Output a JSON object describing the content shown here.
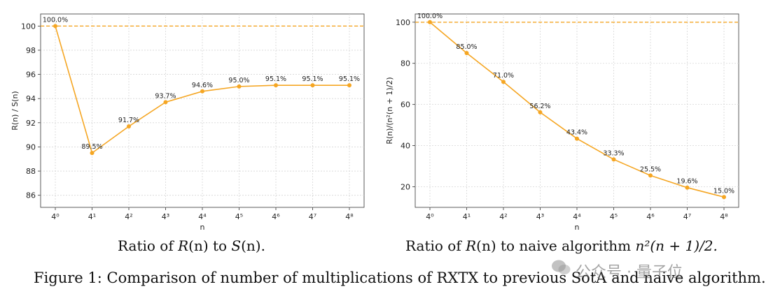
{
  "chart_data": [
    {
      "type": "line",
      "categories": [
        "4⁰",
        "4¹",
        "4²",
        "4³",
        "4⁴",
        "4⁵",
        "4⁶",
        "4⁷",
        "4⁸"
      ],
      "values": [
        100.0,
        89.5,
        91.7,
        93.7,
        94.6,
        95.0,
        95.1,
        95.1,
        95.1
      ],
      "data_labels": [
        "100.0%",
        "89.5%",
        "91.7%",
        "93.7%",
        "94.6%",
        "95.0%",
        "95.1%",
        "95.1%",
        "95.1%"
      ],
      "reference_line": 100,
      "xlabel": "n",
      "ylabel": "R(n) / S(n)",
      "ylim": [
        85,
        101
      ],
      "yticks": [
        86,
        88,
        90,
        92,
        94,
        96,
        98,
        100
      ],
      "grid": true,
      "color": "#f5a623"
    },
    {
      "type": "line",
      "categories": [
        "4⁰",
        "4¹",
        "4²",
        "4³",
        "4⁴",
        "4⁵",
        "4⁶",
        "4⁷",
        "4⁸"
      ],
      "values": [
        100.0,
        85.0,
        71.0,
        56.2,
        43.4,
        33.3,
        25.5,
        19.6,
        15.0
      ],
      "data_labels": [
        "100.0%",
        "85.0%",
        "71.0%",
        "56.2%",
        "43.4%",
        "33.3%",
        "25.5%",
        "19.6%",
        "15.0%"
      ],
      "reference_line": 100,
      "xlabel": "n",
      "ylabel": "R(n)/(n²(n + 1)/2)",
      "ylim": [
        10,
        104
      ],
      "yticks": [
        20,
        40,
        60,
        80,
        100
      ],
      "grid": true,
      "color": "#f5a623"
    }
  ],
  "captions": {
    "left_prefix": "Ratio of ",
    "left_r": "R",
    "left_mid": "(n) to ",
    "left_s": "S",
    "left_end": "(n).",
    "right_prefix": "Ratio of ",
    "right_r": "R",
    "right_mid": "(n) to naive algorithm ",
    "right_formula": "n²(n + 1)/2.",
    "figure": "Figure 1: Comparison of number of multiplications of RXTX to previous SotA and naive algorithm."
  },
  "watermark": "公众号 · 量子位"
}
